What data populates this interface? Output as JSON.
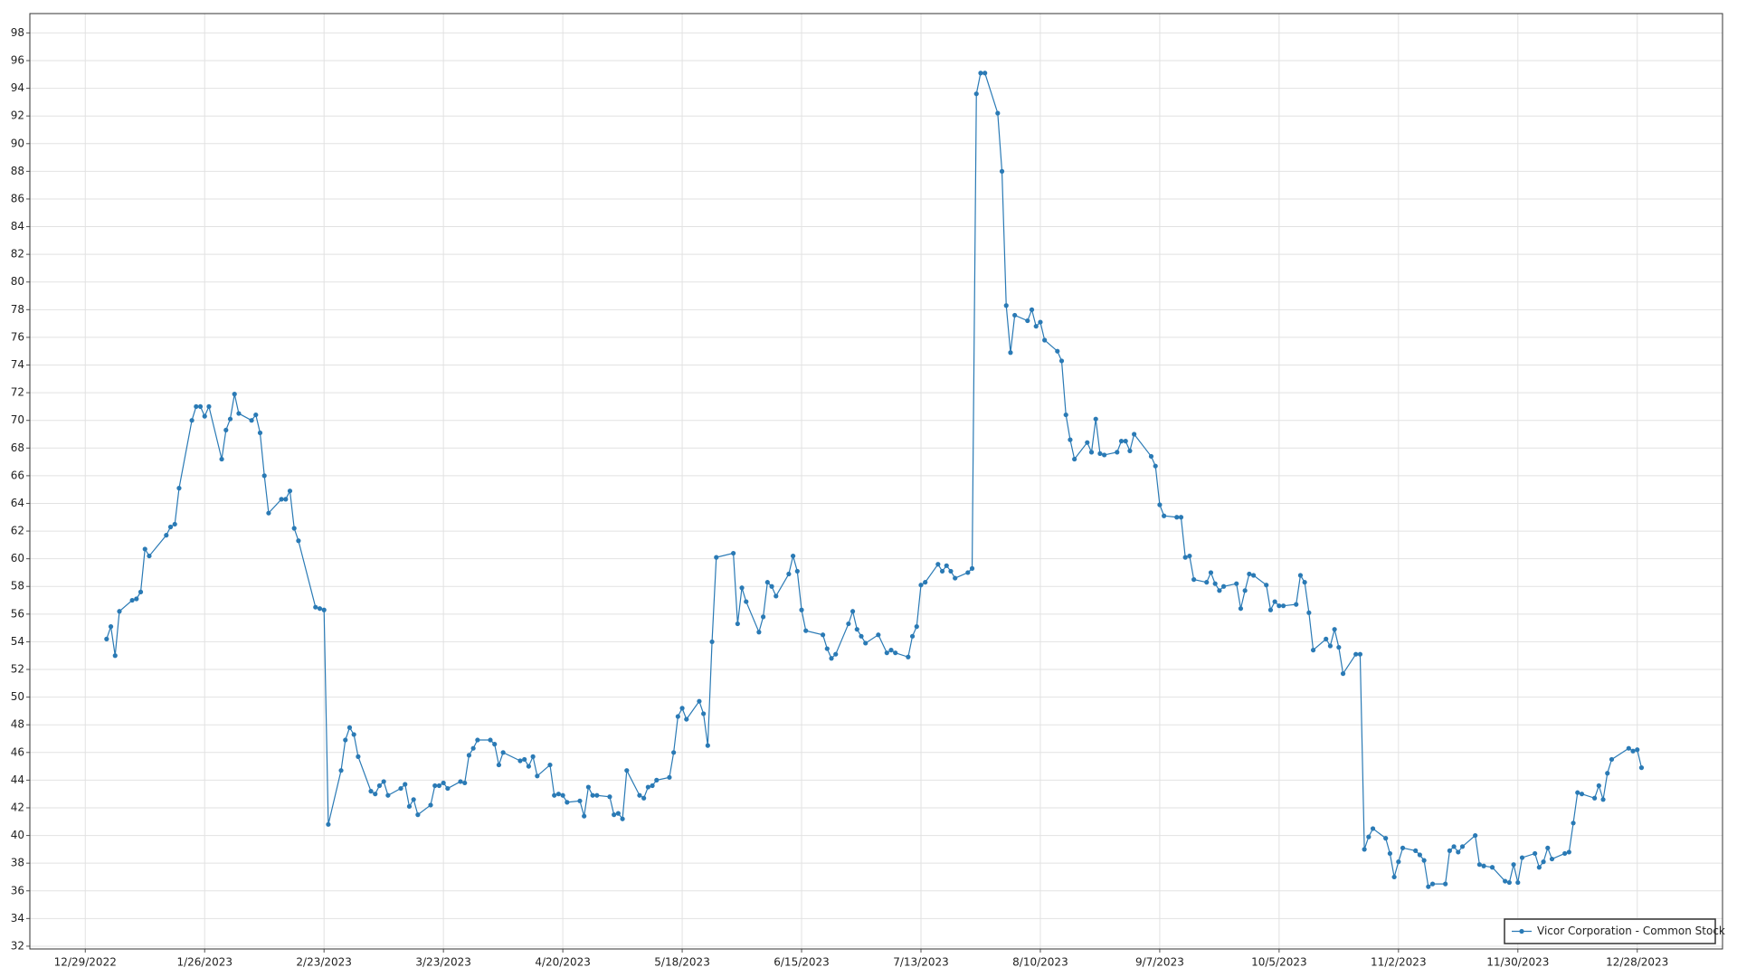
{
  "chart_data": {
    "type": "line",
    "x": [
      "1/3/2023",
      "1/4/2023",
      "1/5/2023",
      "1/6/2023",
      "1/9/2023",
      "1/10/2023",
      "1/11/2023",
      "1/12/2023",
      "1/13/2023",
      "1/17/2023",
      "1/18/2023",
      "1/19/2023",
      "1/20/2023",
      "1/23/2023",
      "1/24/2023",
      "1/25/2023",
      "1/26/2023",
      "1/27/2023",
      "1/30/2023",
      "1/31/2023",
      "2/1/2023",
      "2/2/2023",
      "2/3/2023",
      "2/6/2023",
      "2/7/2023",
      "2/8/2023",
      "2/9/2023",
      "2/10/2023",
      "2/13/2023",
      "2/14/2023",
      "2/15/2023",
      "2/16/2023",
      "2/17/2023",
      "2/21/2023",
      "2/22/2023",
      "2/23/2023",
      "2/24/2023",
      "2/27/2023",
      "2/28/2023",
      "3/1/2023",
      "3/2/2023",
      "3/3/2023",
      "3/6/2023",
      "3/7/2023",
      "3/8/2023",
      "3/9/2023",
      "3/10/2023",
      "3/13/2023",
      "3/14/2023",
      "3/15/2023",
      "3/16/2023",
      "3/17/2023",
      "3/20/2023",
      "3/21/2023",
      "3/22/2023",
      "3/23/2023",
      "3/24/2023",
      "3/27/2023",
      "3/28/2023",
      "3/29/2023",
      "3/30/2023",
      "3/31/2023",
      "4/3/2023",
      "4/4/2023",
      "4/5/2023",
      "4/6/2023",
      "4/10/2023",
      "4/11/2023",
      "4/12/2023",
      "4/13/2023",
      "4/14/2023",
      "4/17/2023",
      "4/18/2023",
      "4/19/2023",
      "4/20/2023",
      "4/21/2023",
      "4/24/2023",
      "4/25/2023",
      "4/26/2023",
      "4/27/2023",
      "4/28/2023",
      "5/1/2023",
      "5/2/2023",
      "5/3/2023",
      "5/4/2023",
      "5/5/2023",
      "5/8/2023",
      "5/9/2023",
      "5/10/2023",
      "5/11/2023",
      "5/12/2023",
      "5/15/2023",
      "5/16/2023",
      "5/17/2023",
      "5/18/2023",
      "5/19/2023",
      "5/22/2023",
      "5/23/2023",
      "5/24/2023",
      "5/25/2023",
      "5/26/2023",
      "5/30/2023",
      "5/31/2023",
      "6/1/2023",
      "6/2/2023",
      "6/5/2023",
      "6/6/2023",
      "6/7/2023",
      "6/8/2023",
      "6/9/2023",
      "6/12/2023",
      "6/13/2023",
      "6/14/2023",
      "6/15/2023",
      "6/16/2023",
      "6/20/2023",
      "6/21/2023",
      "6/22/2023",
      "6/23/2023",
      "6/26/2023",
      "6/27/2023",
      "6/28/2023",
      "6/29/2023",
      "6/30/2023",
      "7/3/2023",
      "7/5/2023",
      "7/6/2023",
      "7/7/2023",
      "7/10/2023",
      "7/11/2023",
      "7/12/2023",
      "7/13/2023",
      "7/14/2023",
      "7/17/2023",
      "7/18/2023",
      "7/19/2023",
      "7/20/2023",
      "7/21/2023",
      "7/24/2023",
      "7/25/2023",
      "7/26/2023",
      "7/27/2023",
      "7/28/2023",
      "7/31/2023",
      "8/1/2023",
      "8/2/2023",
      "8/3/2023",
      "8/4/2023",
      "8/7/2023",
      "8/8/2023",
      "8/9/2023",
      "8/10/2023",
      "8/11/2023",
      "8/14/2023",
      "8/15/2023",
      "8/16/2023",
      "8/17/2023",
      "8/18/2023",
      "8/21/2023",
      "8/22/2023",
      "8/23/2023",
      "8/24/2023",
      "8/25/2023",
      "8/28/2023",
      "8/29/2023",
      "8/30/2023",
      "8/31/2023",
      "9/1/2023",
      "9/5/2023",
      "9/6/2023",
      "9/7/2023",
      "9/8/2023",
      "9/11/2023",
      "9/12/2023",
      "9/13/2023",
      "9/14/2023",
      "9/15/2023",
      "9/18/2023",
      "9/19/2023",
      "9/20/2023",
      "9/21/2023",
      "9/22/2023",
      "9/25/2023",
      "9/26/2023",
      "9/27/2023",
      "9/28/2023",
      "9/29/2023",
      "10/2/2023",
      "10/3/2023",
      "10/4/2023",
      "10/5/2023",
      "10/6/2023",
      "10/9/2023",
      "10/10/2023",
      "10/11/2023",
      "10/12/2023",
      "10/13/2023",
      "10/16/2023",
      "10/17/2023",
      "10/18/2023",
      "10/19/2023",
      "10/20/2023",
      "10/23/2023",
      "10/24/2023",
      "10/25/2023",
      "10/26/2023",
      "10/27/2023",
      "10/30/2023",
      "10/31/2023",
      "11/1/2023",
      "11/2/2023",
      "11/3/2023",
      "11/6/2023",
      "11/7/2023",
      "11/8/2023",
      "11/9/2023",
      "11/10/2023",
      "11/13/2023",
      "11/14/2023",
      "11/15/2023",
      "11/16/2023",
      "11/17/2023",
      "11/20/2023",
      "11/21/2023",
      "11/22/2023",
      "11/24/2023",
      "11/27/2023",
      "11/28/2023",
      "11/29/2023",
      "11/30/2023",
      "12/1/2023",
      "12/4/2023",
      "12/5/2023",
      "12/6/2023",
      "12/7/2023",
      "12/8/2023",
      "12/11/2023",
      "12/12/2023",
      "12/13/2023",
      "12/14/2023",
      "12/15/2023",
      "12/18/2023",
      "12/19/2023",
      "12/20/2023",
      "12/21/2023",
      "12/22/2023",
      "12/26/2023",
      "12/27/2023",
      "12/28/2023",
      "12/29/2023"
    ],
    "series": [
      {
        "name": "Vicor Corporation - Common Stock",
        "color": "#2a7ab5",
        "values": [
          54.2,
          55.1,
          53.0,
          56.2,
          57.0,
          57.1,
          57.6,
          60.7,
          60.2,
          61.7,
          62.3,
          62.5,
          65.1,
          70.0,
          71.0,
          71.0,
          70.3,
          71.0,
          67.2,
          69.3,
          70.1,
          71.9,
          70.5,
          70.0,
          70.4,
          69.1,
          66.0,
          63.3,
          64.3,
          64.3,
          64.9,
          62.2,
          61.3,
          56.5,
          56.4,
          56.3,
          40.8,
          44.7,
          46.9,
          47.8,
          47.3,
          45.7,
          43.2,
          43.0,
          43.6,
          43.9,
          42.9,
          43.4,
          43.7,
          42.1,
          42.6,
          41.5,
          42.2,
          43.6,
          43.6,
          43.8,
          43.4,
          43.9,
          43.8,
          45.8,
          46.3,
          46.9,
          46.9,
          46.6,
          45.1,
          46.0,
          45.4,
          45.5,
          45.0,
          45.7,
          44.3,
          45.1,
          42.9,
          43.0,
          42.9,
          42.4,
          42.5,
          41.4,
          43.5,
          42.9,
          42.9,
          42.8,
          41.5,
          41.6,
          41.2,
          44.7,
          42.9,
          42.7,
          43.5,
          43.6,
          44.0,
          44.2,
          46.0,
          48.6,
          49.2,
          48.4,
          49.7,
          48.8,
          46.5,
          54.0,
          60.1,
          60.4,
          55.3,
          57.9,
          56.9,
          54.7,
          55.8,
          58.3,
          58.0,
          57.3,
          58.9,
          60.2,
          59.1,
          56.3,
          54.8,
          54.5,
          53.5,
          52.8,
          53.1,
          55.3,
          56.2,
          54.9,
          54.4,
          53.9,
          54.5,
          53.2,
          53.4,
          53.2,
          52.9,
          54.4,
          55.1,
          58.1,
          58.3,
          59.6,
          59.1,
          59.5,
          59.1,
          58.6,
          59.0,
          59.3,
          93.6,
          95.1,
          95.1,
          92.2,
          88.0,
          78.3,
          74.9,
          77.6,
          77.2,
          78.0,
          76.8,
          77.1,
          75.8,
          75.0,
          74.3,
          70.4,
          68.6,
          67.2,
          68.4,
          67.7,
          70.1,
          67.6,
          67.5,
          67.7,
          68.5,
          68.5,
          67.8,
          69.0,
          67.4,
          66.7,
          63.9,
          63.1,
          63.0,
          63.0,
          60.1,
          60.2,
          58.5,
          58.3,
          59.0,
          58.2,
          57.7,
          58.0,
          58.2,
          56.4,
          57.7,
          58.9,
          58.8,
          58.1,
          56.3,
          56.9,
          56.6,
          56.6,
          56.7,
          58.8,
          58.3,
          56.1,
          53.4,
          54.2,
          53.7,
          54.9,
          53.6,
          51.7,
          53.1,
          53.1,
          39.0,
          39.9,
          40.5,
          39.8,
          38.7,
          37.0,
          38.1,
          39.1,
          38.9,
          38.6,
          38.2,
          36.3,
          36.5,
          36.5,
          38.9,
          39.2,
          38.8,
          39.2,
          40.0,
          37.9,
          37.8,
          37.7,
          36.7,
          36.6,
          37.9,
          36.6,
          38.4,
          38.7,
          37.7,
          38.1,
          39.1,
          38.3,
          38.7,
          38.8,
          40.9,
          43.1,
          43.0,
          42.7,
          43.6,
          42.6,
          44.5,
          45.5,
          46.3,
          46.1,
          46.2,
          44.9
        ]
      }
    ],
    "xlim": [
      "12/16/2022",
      "1/17/2024"
    ],
    "xticks": [
      "12/29/2022",
      "1/26/2023",
      "2/23/2023",
      "3/23/2023",
      "4/20/2023",
      "5/18/2023",
      "6/15/2023",
      "7/13/2023",
      "8/10/2023",
      "9/7/2023",
      "10/5/2023",
      "11/2/2023",
      "11/30/2023",
      "12/28/2023"
    ],
    "ylim": [
      31.8,
      99.4
    ],
    "yticks": [
      32,
      34,
      36,
      38,
      40,
      42,
      44,
      46,
      48,
      50,
      52,
      54,
      56,
      58,
      60,
      62,
      64,
      66,
      68,
      70,
      72,
      74,
      76,
      78,
      80,
      82,
      84,
      86,
      88,
      90,
      92,
      94,
      96,
      98
    ],
    "grid": true,
    "legend": "lower right"
  }
}
